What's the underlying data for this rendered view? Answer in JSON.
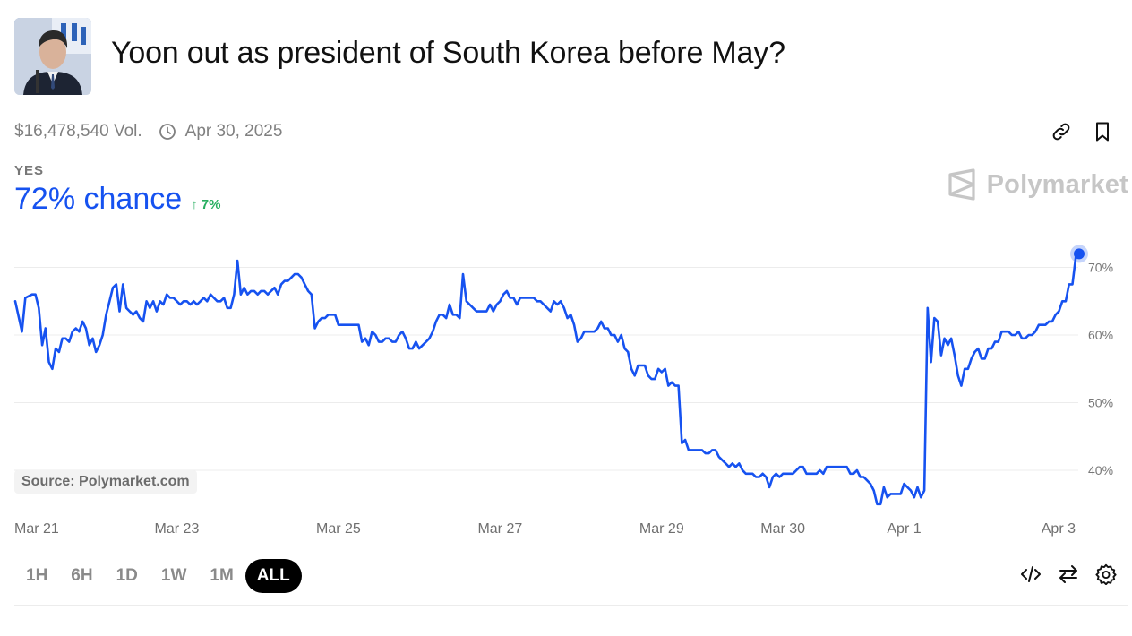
{
  "market": {
    "title": "Yoon out as president of South Korea before May?",
    "volume": "$16,478,540 Vol.",
    "end_date": "Apr 30, 2025",
    "outcome_label": "YES",
    "chance": "72% chance",
    "change": "↑ 7%"
  },
  "brand": {
    "name": "Polymarket",
    "source": "Source: Polymarket.com"
  },
  "ranges": [
    "1H",
    "6H",
    "1D",
    "1W",
    "1M",
    "ALL"
  ],
  "active_range": "ALL",
  "colors": {
    "line": "#1652f0",
    "up": "#27ae60",
    "grid": "#ececec"
  },
  "chart_data": {
    "type": "line",
    "title": "",
    "series": [
      {
        "name": "YES",
        "unit": "%"
      }
    ],
    "x_ticks": [
      {
        "t": 0,
        "label": "Mar 21"
      },
      {
        "t": 48,
        "label": "Mar 23"
      },
      {
        "t": 96,
        "label": "Mar 25"
      },
      {
        "t": 144,
        "label": "Mar 27"
      },
      {
        "t": 192,
        "label": "Mar 29"
      },
      {
        "t": 228,
        "label": "Mar 30"
      },
      {
        "t": 264,
        "label": "Apr 1"
      },
      {
        "t": 310,
        "label": "Apr 3"
      }
    ],
    "y_ticks": [
      "40%",
      "50%",
      "60%",
      "70%"
    ],
    "y_tick_values": [
      40,
      50,
      60,
      70
    ],
    "ylim": [
      34,
      76
    ],
    "xlim": [
      0,
      316
    ],
    "points": [
      [
        0,
        65
      ],
      [
        2,
        60.5
      ],
      [
        3,
        65.5
      ],
      [
        5,
        66
      ],
      [
        6,
        66
      ],
      [
        7,
        64
      ],
      [
        8,
        58.5
      ],
      [
        9,
        61
      ],
      [
        10,
        56
      ],
      [
        11,
        55
      ],
      [
        12,
        58
      ],
      [
        13,
        57.5
      ],
      [
        14,
        59.5
      ],
      [
        15,
        59.5
      ],
      [
        16,
        59
      ],
      [
        17,
        60.5
      ],
      [
        18,
        61
      ],
      [
        19,
        60.5
      ],
      [
        20,
        62
      ],
      [
        21,
        61
      ],
      [
        22,
        58.5
      ],
      [
        23,
        59.5
      ],
      [
        24,
        57.5
      ],
      [
        25,
        58.5
      ],
      [
        26,
        60
      ],
      [
        27,
        63
      ],
      [
        28,
        65
      ],
      [
        29,
        67
      ],
      [
        30,
        67.5
      ],
      [
        31,
        63.5
      ],
      [
        32,
        67.5
      ],
      [
        33,
        64
      ],
      [
        34,
        63.5
      ],
      [
        35,
        63
      ],
      [
        36,
        63.5
      ],
      [
        37,
        62.5
      ],
      [
        38,
        62
      ],
      [
        39,
        65
      ],
      [
        40,
        64
      ],
      [
        41,
        65
      ],
      [
        42,
        63.5
      ],
      [
        43,
        65
      ],
      [
        44,
        64.5
      ],
      [
        45,
        66
      ],
      [
        46,
        65.5
      ],
      [
        47,
        65.5
      ],
      [
        48,
        65
      ],
      [
        49,
        64.5
      ],
      [
        50,
        65
      ],
      [
        51,
        65
      ],
      [
        52,
        64.5
      ],
      [
        53,
        65
      ],
      [
        54,
        64.5
      ],
      [
        55,
        65
      ],
      [
        56,
        65.5
      ],
      [
        57,
        65
      ],
      [
        58,
        66
      ],
      [
        59,
        65.5
      ],
      [
        60,
        65
      ],
      [
        61,
        65
      ],
      [
        62,
        65.5
      ],
      [
        63,
        64
      ],
      [
        64,
        64
      ],
      [
        65,
        66
      ],
      [
        66,
        71
      ],
      [
        67,
        66
      ],
      [
        68,
        67
      ],
      [
        69,
        66
      ],
      [
        70,
        66.5
      ],
      [
        71,
        66.5
      ],
      [
        72,
        66
      ],
      [
        73,
        66.5
      ],
      [
        74,
        66.5
      ],
      [
        75,
        66
      ],
      [
        76,
        66.5
      ],
      [
        77,
        67
      ],
      [
        78,
        66
      ],
      [
        79,
        67.5
      ],
      [
        80,
        68
      ],
      [
        81,
        68
      ],
      [
        82,
        68.5
      ],
      [
        83,
        69
      ],
      [
        84,
        69
      ],
      [
        85,
        68.5
      ],
      [
        86,
        67.5
      ],
      [
        87,
        66.5
      ],
      [
        88,
        66
      ],
      [
        89,
        61
      ],
      [
        90,
        62
      ],
      [
        91,
        62.5
      ],
      [
        92,
        62.5
      ],
      [
        93,
        63
      ],
      [
        94,
        63
      ],
      [
        95,
        63
      ],
      [
        96,
        61.5
      ],
      [
        97,
        61.5
      ],
      [
        98,
        61.5
      ],
      [
        99,
        61.5
      ],
      [
        100,
        61.5
      ],
      [
        101,
        61.5
      ],
      [
        102,
        61.5
      ],
      [
        103,
        59
      ],
      [
        104,
        59.5
      ],
      [
        105,
        58.5
      ],
      [
        106,
        60.5
      ],
      [
        107,
        60
      ],
      [
        108,
        59
      ],
      [
        109,
        59
      ],
      [
        110,
        59.5
      ],
      [
        111,
        59.5
      ],
      [
        112,
        59
      ],
      [
        113,
        59
      ],
      [
        114,
        60
      ],
      [
        115,
        60.5
      ],
      [
        116,
        59.5
      ],
      [
        117,
        58
      ],
      [
        118,
        58
      ],
      [
        119,
        59
      ],
      [
        120,
        58
      ],
      [
        121,
        58.5
      ],
      [
        122,
        59
      ],
      [
        123,
        59.5
      ],
      [
        124,
        60.5
      ],
      [
        125,
        62
      ],
      [
        126,
        63
      ],
      [
        127,
        63
      ],
      [
        128,
        62.5
      ],
      [
        129,
        64.5
      ],
      [
        130,
        63
      ],
      [
        131,
        63
      ],
      [
        132,
        62.5
      ],
      [
        133,
        69
      ],
      [
        134,
        65
      ],
      [
        135,
        64.5
      ],
      [
        136,
        64
      ],
      [
        137,
        63.5
      ],
      [
        138,
        63.5
      ],
      [
        139,
        63.5
      ],
      [
        140,
        63.5
      ],
      [
        141,
        64.5
      ],
      [
        142,
        63.5
      ],
      [
        143,
        64.5
      ],
      [
        144,
        65
      ],
      [
        145,
        66
      ],
      [
        146,
        66.5
      ],
      [
        147,
        65.5
      ],
      [
        148,
        65.5
      ],
      [
        149,
        64.5
      ],
      [
        150,
        65.5
      ],
      [
        151,
        65.5
      ],
      [
        152,
        65.5
      ],
      [
        153,
        65.5
      ],
      [
        154,
        65.5
      ],
      [
        155,
        65
      ],
      [
        156,
        65
      ],
      [
        157,
        64.5
      ],
      [
        158,
        64
      ],
      [
        159,
        63.5
      ],
      [
        160,
        65
      ],
      [
        161,
        64.5
      ],
      [
        162,
        65
      ],
      [
        163,
        64
      ],
      [
        164,
        62.5
      ],
      [
        165,
        63
      ],
      [
        166,
        61.5
      ],
      [
        167,
        59
      ],
      [
        168,
        59.5
      ],
      [
        169,
        60.5
      ],
      [
        170,
        60.5
      ],
      [
        171,
        60.5
      ],
      [
        172,
        60.5
      ],
      [
        173,
        61
      ],
      [
        174,
        62
      ],
      [
        175,
        61
      ],
      [
        176,
        61
      ],
      [
        177,
        60
      ],
      [
        178,
        60
      ],
      [
        179,
        59
      ],
      [
        180,
        60
      ],
      [
        181,
        58
      ],
      [
        182,
        57.5
      ],
      [
        183,
        55
      ],
      [
        184,
        54
      ],
      [
        185,
        55.5
      ],
      [
        186,
        55.5
      ],
      [
        187,
        55.5
      ],
      [
        188,
        54
      ],
      [
        189,
        53.5
      ],
      [
        190,
        53.5
      ],
      [
        191,
        55
      ],
      [
        192,
        54.5
      ],
      [
        193,
        55
      ],
      [
        194,
        52.5
      ],
      [
        195,
        53
      ],
      [
        196,
        52.5
      ],
      [
        197,
        52.5
      ],
      [
        198,
        44
      ],
      [
        199,
        44.5
      ],
      [
        200,
        43
      ],
      [
        201,
        43
      ],
      [
        202,
        43
      ],
      [
        203,
        43
      ],
      [
        204,
        43
      ],
      [
        205,
        42.5
      ],
      [
        206,
        42.5
      ],
      [
        207,
        43
      ],
      [
        208,
        43
      ],
      [
        209,
        42
      ],
      [
        210,
        41.5
      ],
      [
        211,
        41
      ],
      [
        212,
        40.5
      ],
      [
        213,
        41
      ],
      [
        214,
        40.5
      ],
      [
        215,
        41
      ],
      [
        216,
        40
      ],
      [
        217,
        39.5
      ],
      [
        218,
        39.5
      ],
      [
        219,
        39.5
      ],
      [
        220,
        39
      ],
      [
        221,
        39
      ],
      [
        222,
        39.5
      ],
      [
        223,
        39
      ],
      [
        224,
        37.5
      ],
      [
        225,
        39
      ],
      [
        226,
        39.5
      ],
      [
        227,
        39
      ],
      [
        228,
        39.5
      ],
      [
        229,
        39.5
      ],
      [
        230,
        39.5
      ],
      [
        231,
        39.5
      ],
      [
        232,
        40
      ],
      [
        233,
        40.5
      ],
      [
        234,
        40.5
      ],
      [
        235,
        39.5
      ],
      [
        236,
        39.5
      ],
      [
        237,
        39.5
      ],
      [
        238,
        39.5
      ],
      [
        239,
        40
      ],
      [
        240,
        39.5
      ],
      [
        241,
        40.5
      ],
      [
        242,
        40.5
      ],
      [
        243,
        40.5
      ],
      [
        244,
        40.5
      ],
      [
        245,
        40.5
      ],
      [
        246,
        40.5
      ],
      [
        247,
        40.5
      ],
      [
        248,
        39.5
      ],
      [
        249,
        39.5
      ],
      [
        250,
        40
      ],
      [
        251,
        39
      ],
      [
        252,
        39
      ],
      [
        253,
        38.5
      ],
      [
        254,
        38
      ],
      [
        255,
        37
      ],
      [
        256,
        35
      ],
      [
        257,
        35
      ],
      [
        258,
        37.5
      ],
      [
        259,
        36
      ],
      [
        260,
        36.5
      ],
      [
        261,
        36.5
      ],
      [
        262,
        36.5
      ],
      [
        263,
        36.5
      ],
      [
        264,
        38
      ],
      [
        265,
        37.5
      ],
      [
        266,
        37
      ],
      [
        267,
        36
      ],
      [
        268,
        37.5
      ],
      [
        269,
        36
      ],
      [
        270,
        37
      ],
      [
        271,
        64
      ],
      [
        272,
        56
      ],
      [
        273,
        62.5
      ],
      [
        274,
        62
      ],
      [
        275,
        57
      ],
      [
        276,
        59.5
      ],
      [
        277,
        58.5
      ],
      [
        278,
        59.5
      ],
      [
        279,
        57
      ],
      [
        280,
        54
      ],
      [
        281,
        52.5
      ],
      [
        282,
        55
      ],
      [
        283,
        55
      ],
      [
        284,
        56.5
      ],
      [
        285,
        57.5
      ],
      [
        286,
        58
      ],
      [
        287,
        56.5
      ],
      [
        288,
        56.5
      ],
      [
        289,
        58
      ],
      [
        290,
        58
      ],
      [
        291,
        59
      ],
      [
        292,
        59
      ],
      [
        293,
        60.5
      ],
      [
        294,
        60.5
      ],
      [
        295,
        60.5
      ],
      [
        296,
        60
      ],
      [
        297,
        60
      ],
      [
        298,
        60.5
      ],
      [
        299,
        59.5
      ],
      [
        300,
        59.5
      ],
      [
        301,
        60
      ],
      [
        302,
        60
      ],
      [
        303,
        60.5
      ],
      [
        304,
        61.5
      ],
      [
        305,
        61.5
      ],
      [
        306,
        61.5
      ],
      [
        307,
        62
      ],
      [
        308,
        62
      ],
      [
        309,
        63
      ],
      [
        310,
        63.5
      ],
      [
        311,
        65
      ],
      [
        312,
        65
      ],
      [
        313,
        67.5
      ],
      [
        314,
        67.5
      ],
      [
        315,
        71.5
      ],
      [
        316,
        72
      ]
    ]
  }
}
